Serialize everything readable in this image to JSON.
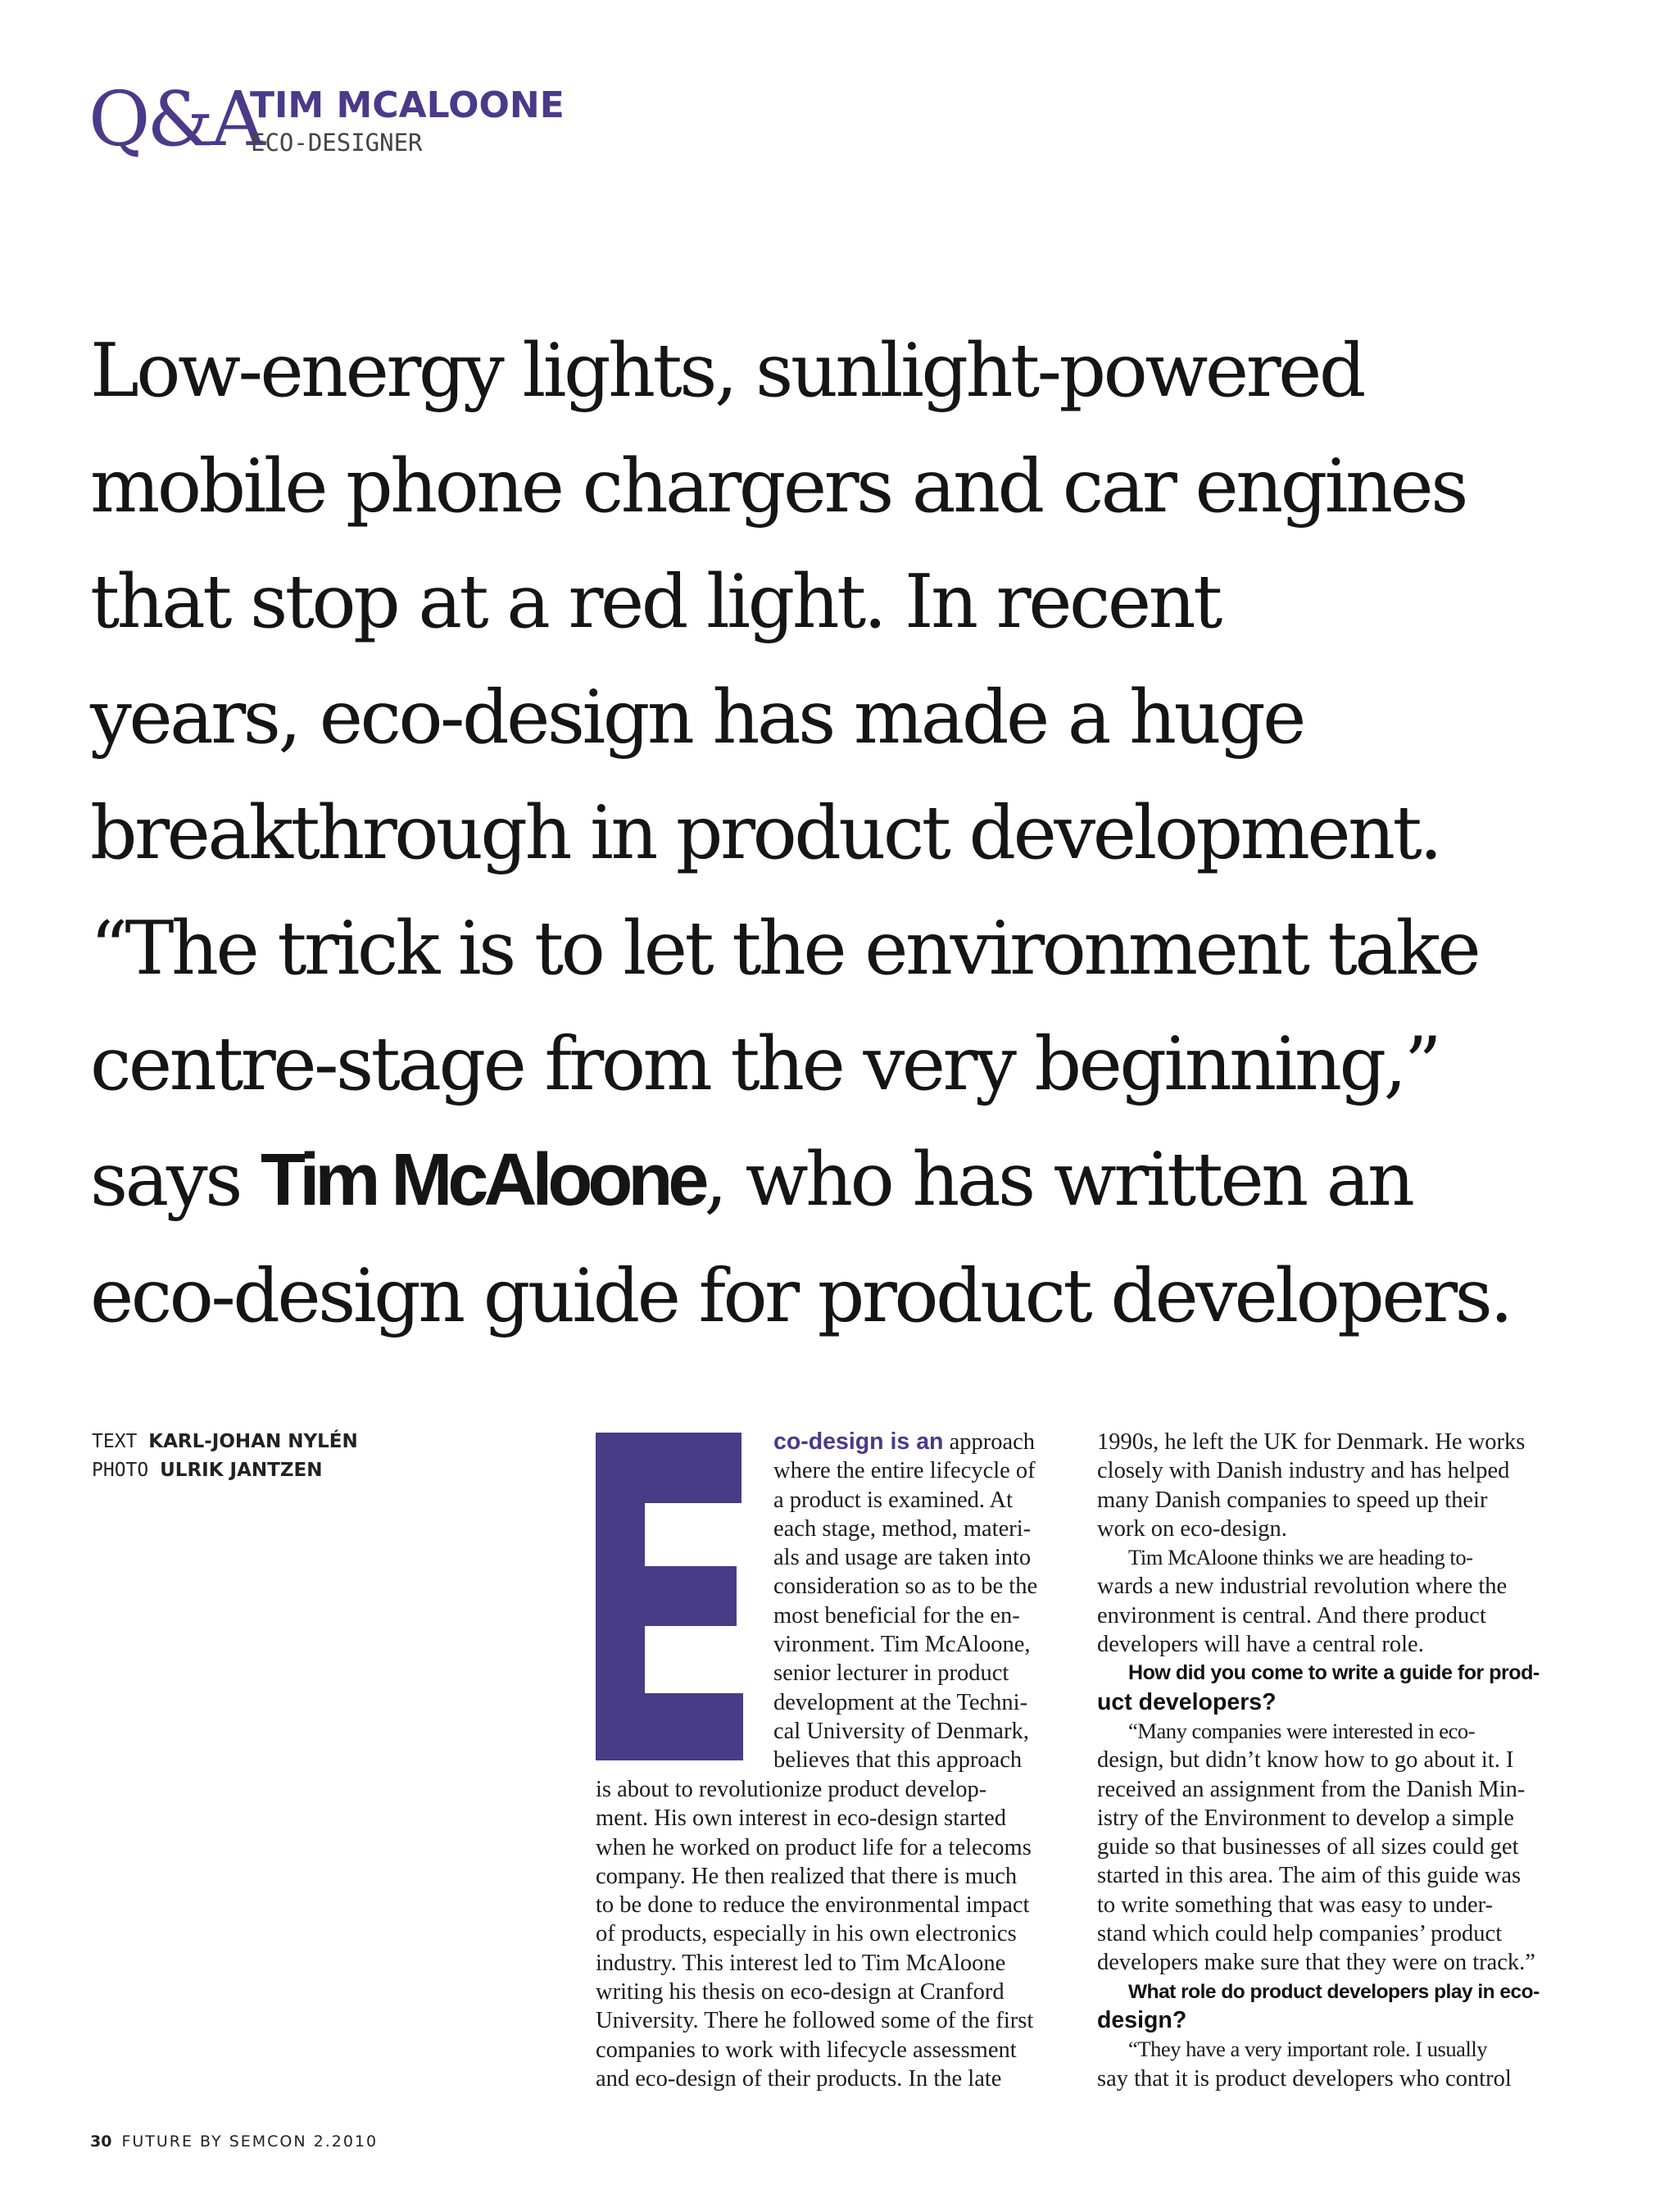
{
  "header": {
    "logo": "Q&A",
    "name": "TIM MCALOONE",
    "role": "ECO-DESIGNER"
  },
  "intro": {
    "lines": [
      "Low-energy lights, sunlight-powered",
      "mobile phone chargers and car engines",
      "that stop at a red light. In recent",
      "years, eco-design has made a huge",
      "breakthrough in product development.",
      "“The trick is to let the environment take",
      "centre-stage from the very beginning,”"
    ],
    "line8_pre": "says ",
    "line8_bold": "Tim McAloone",
    "line8_post": ", who has written an",
    "line9": "eco-design guide for product developers."
  },
  "credits": {
    "text_label": "TEXT",
    "text_name": "KARL-JOHAN NYLÉN",
    "photo_label": "PHOTO",
    "photo_name": "ULRIK JANTZEN"
  },
  "dropcap": {
    "letter": "E",
    "color": "#483c87"
  },
  "article": {
    "lead_bold": "co-design is an",
    "lead_rest": " approach",
    "col1a": [
      "where the entire lifecycle of",
      "a product is examined. At",
      "each stage, method, materi-",
      "als and usage are taken into",
      "consideration so as to be the",
      "most beneficial for the en-",
      "vironment. Tim McAloone,",
      "senior lecturer in product",
      "development at the Techni-",
      "cal University of Denmark,",
      "believes that this approach"
    ],
    "col1b": [
      "is about to revolutionize product develop-",
      "ment. His own interest in eco-design started",
      "when he worked on product life for a telecoms",
      "company. He then realized that there is much",
      "to be done to reduce the environmental impact",
      "of products, especially in his own electronics",
      "industry. This interest led to Tim McAloone",
      "writing his thesis on eco-design at Cranford",
      "University. There he followed some of the first",
      "companies to work with lifecycle assessment",
      "and eco-design of their products. In the late"
    ],
    "col2_p1": [
      "1990s, he left the UK for Denmark. He works",
      "closely with Danish industry and has helped",
      "many Danish companies to speed up their",
      "work on eco-design."
    ],
    "col2_p2": [
      "Tim McAloone thinks we are heading to-",
      "wards a new industrial revolution where the",
      "environment is central. And there product",
      "developers will have a central role."
    ],
    "q1": [
      "How did you come to write a guide for prod-",
      "uct developers?"
    ],
    "a1": [
      "“Many companies were interested in eco-",
      "design, but didn’t know how to go about it. I",
      "received an assignment from the Danish Min-",
      "istry of the Environment to develop a simple",
      "guide so that businesses of all sizes could get",
      "started in this area. The aim of this guide was",
      "to write something that was easy to under-",
      "stand which could help companies’ product",
      "developers make sure that they were on track.”"
    ],
    "q2": [
      "What role do product developers play in eco-",
      "design?"
    ],
    "a2": [
      "“They have a very important role. I usually",
      "say that it is product developers who control"
    ]
  },
  "footer": {
    "page": "30",
    "publication": "FUTURE BY SEMCON 2.2010"
  }
}
